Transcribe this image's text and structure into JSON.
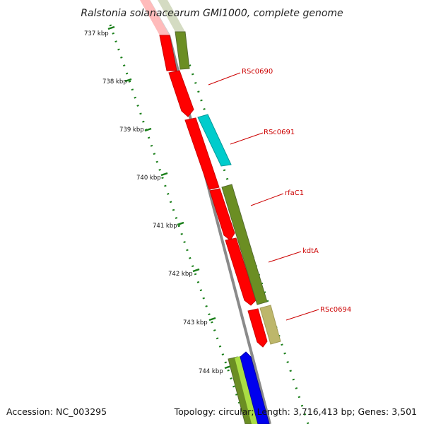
{
  "title": "Ralstonia solanacearum GMI1000, complete genome",
  "footer": {
    "accession": "Accession: NC_003295",
    "summary": "Topology: circular; Length: 3,716,413 bp; Genes: 3,501"
  },
  "ruler_ticks": [
    "737 kbp",
    "738 kbp",
    "739 kbp",
    "740 kbp",
    "741 kbp",
    "742 kbp",
    "743 kbp",
    "744 kbp"
  ],
  "gene_labels": [
    "RSc0690",
    "RSc0691",
    "rfaC1",
    "kdtA",
    "RSc0694"
  ],
  "colors": {
    "red": "#ff0000",
    "olive": "#6b8e23",
    "cyan": "#00cccc",
    "khaki": "#bdb76b",
    "blue": "#0000ee",
    "light_green": "#aadd44",
    "backbone": "#888888",
    "ruler": "#1a7f1a",
    "label": "#cc0000"
  }
}
